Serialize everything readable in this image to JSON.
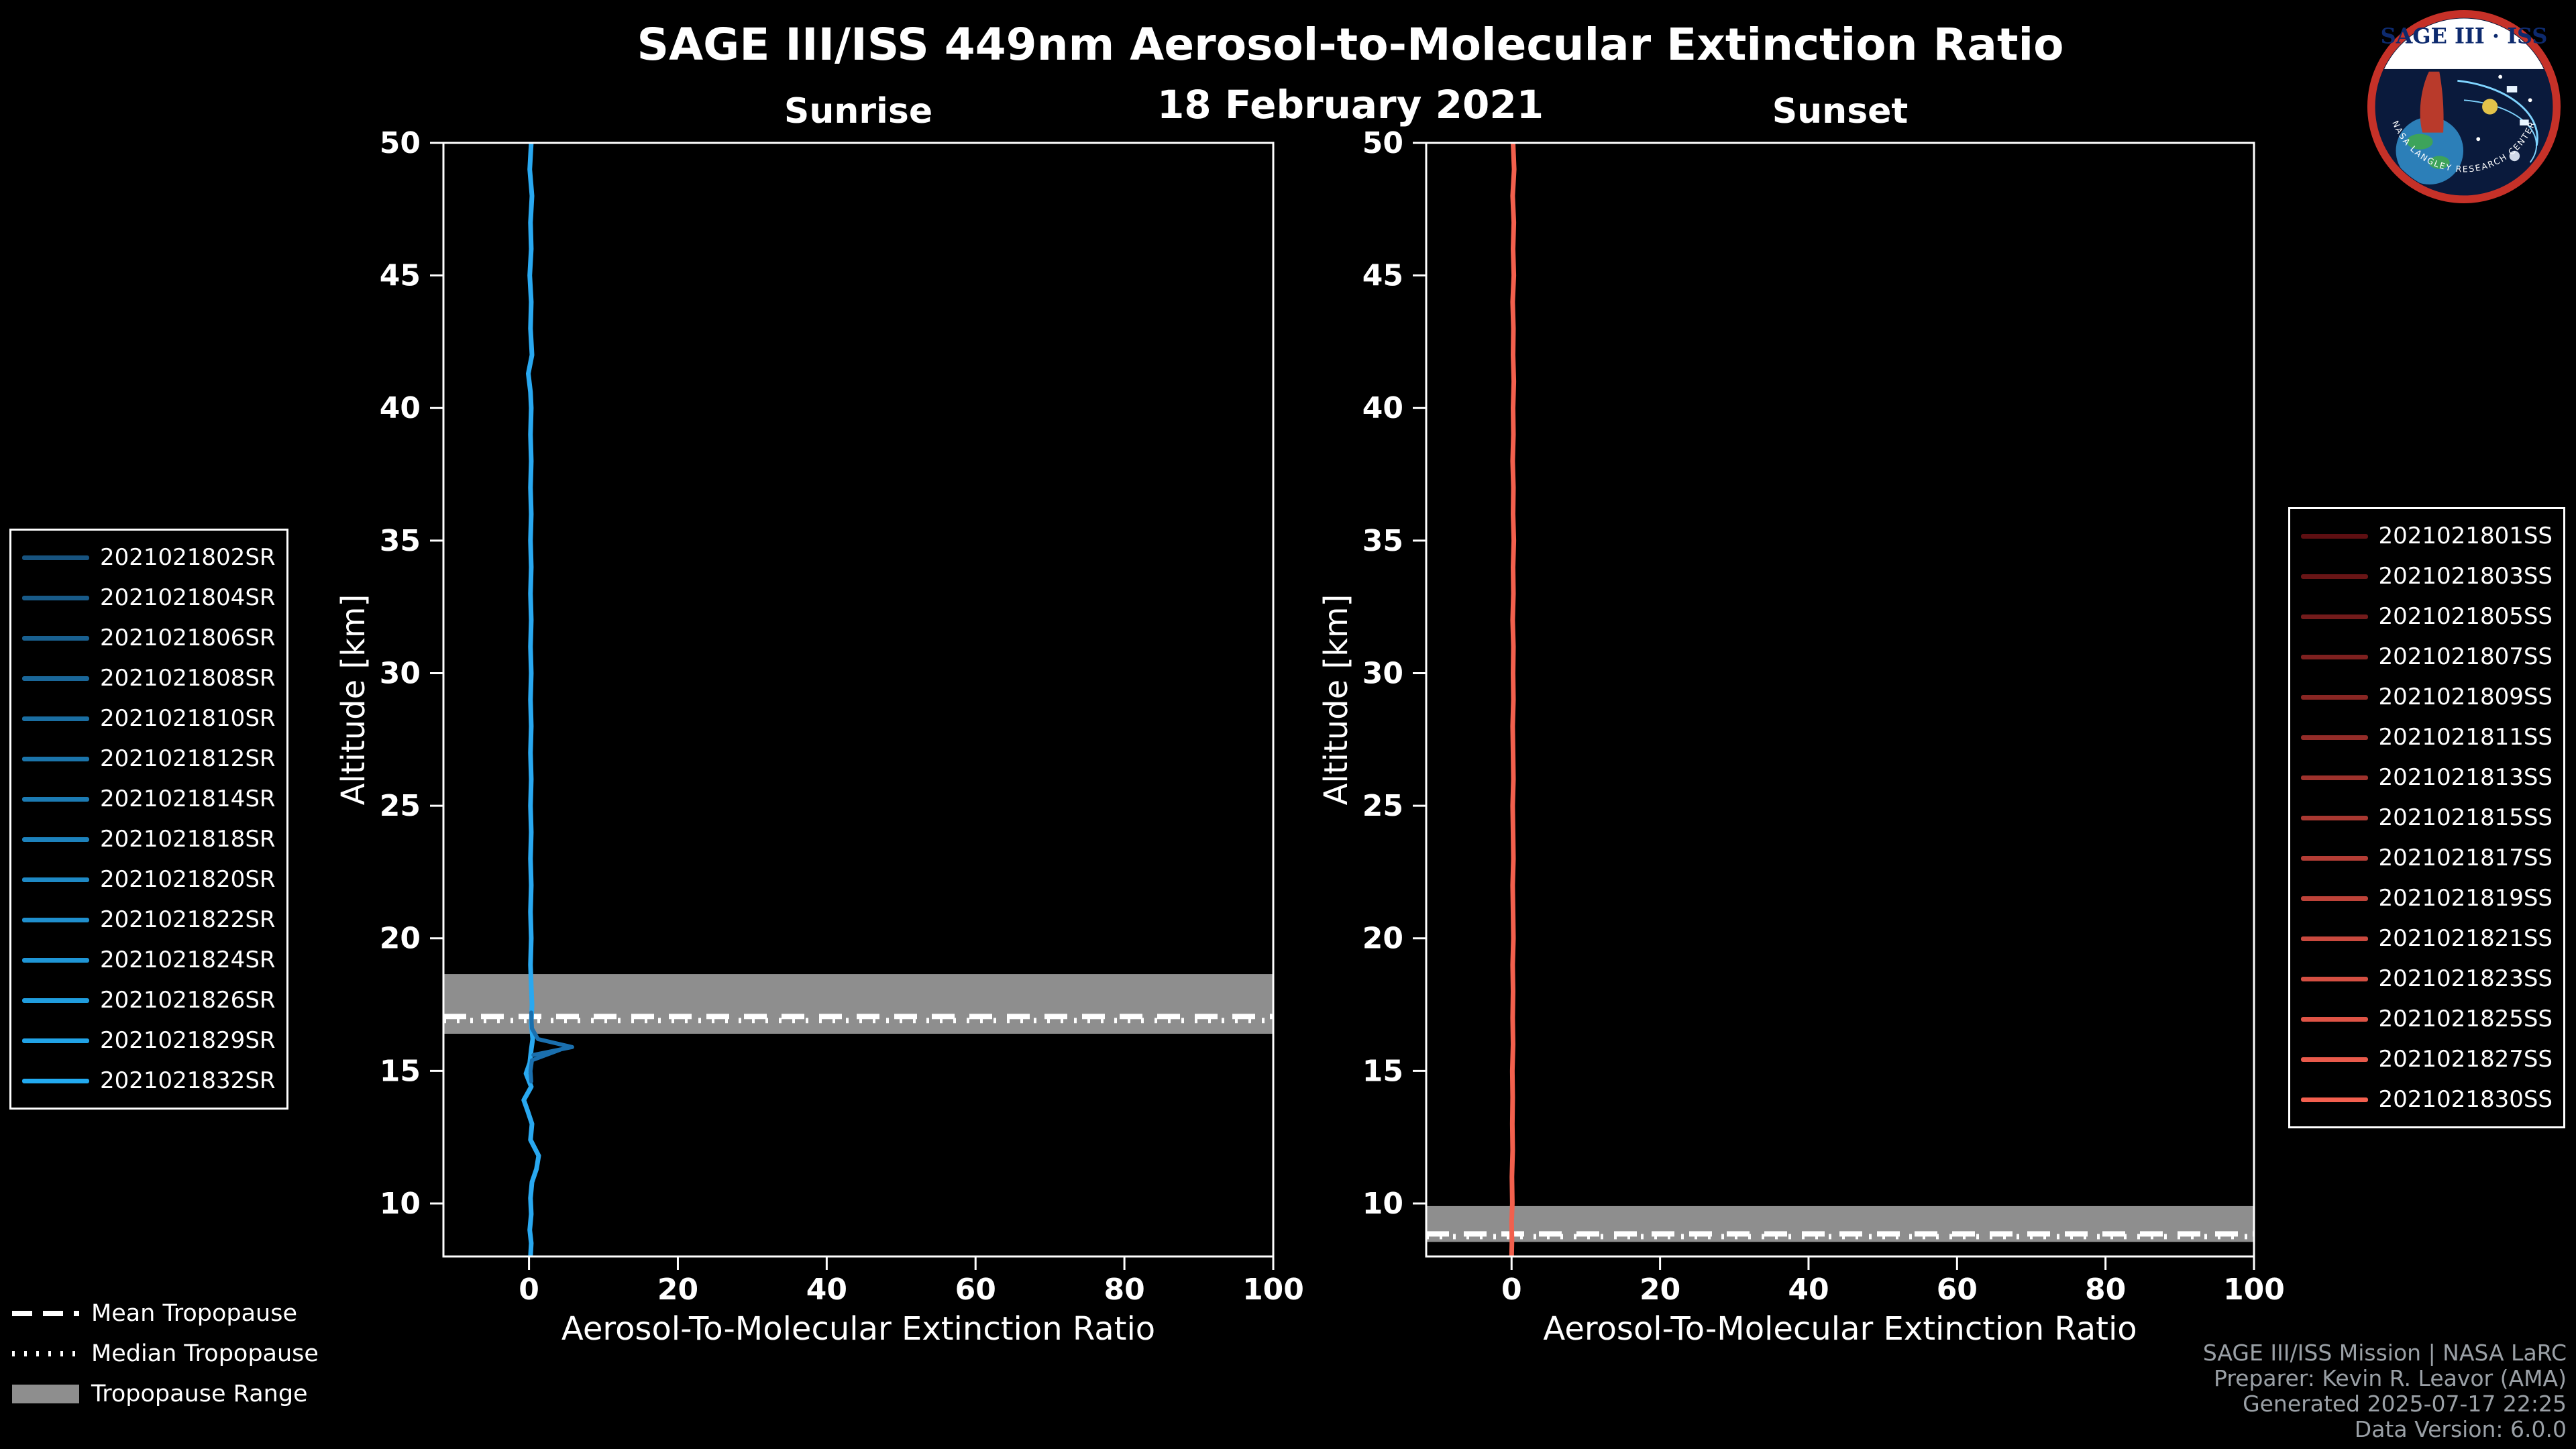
{
  "header": {
    "title": "SAGE III/ISS 449nm Aerosol-to-Molecular Extinction Ratio",
    "date": "18 February 2021"
  },
  "logo": {
    "text": "SAGE III · ISS",
    "ring_text": "NASA LANGLEY RESEARCH CENTER"
  },
  "colors": {
    "background": "#000000",
    "foreground": "#ffffff",
    "band": "#8e8e8e",
    "footer_text": "#9aa0a6"
  },
  "chart_data": [
    {
      "type": "line",
      "title": "Sunrise",
      "xlabel": "Aerosol-To-Molecular Extinction Ratio",
      "ylabel": "Altitude [km]",
      "xlim": [
        -11.5,
        100
      ],
      "ylim": [
        8,
        50
      ],
      "xticks": [
        0,
        20,
        40,
        60,
        80,
        100
      ],
      "yticks": [
        10,
        15,
        20,
        25,
        30,
        35,
        40,
        45,
        50
      ],
      "grid": false,
      "tropopause": {
        "mean_km": 17.05,
        "median_km": 16.9,
        "range_km": [
          16.4,
          18.65
        ]
      },
      "legend": {
        "position": "outside-left",
        "entries": [
          {
            "label": "2021021802SR",
            "color": "#17537F"
          },
          {
            "label": "2021021804SR",
            "color": "#185A88"
          },
          {
            "label": "2021021806SR",
            "color": "#196090"
          },
          {
            "label": "2021021808SR",
            "color": "#1A6799"
          },
          {
            "label": "2021021810SR",
            "color": "#1A6EA2"
          },
          {
            "label": "2021021812SR",
            "color": "#1B74AA"
          },
          {
            "label": "2021021814SR",
            "color": "#1C7BB3"
          },
          {
            "label": "2021021818SR",
            "color": "#1D82BC"
          },
          {
            "label": "2021021820SR",
            "color": "#1E89C5"
          },
          {
            "label": "2021021822SR",
            "color": "#1F8FCD"
          },
          {
            "label": "2021021824SR",
            "color": "#1F96D6"
          },
          {
            "label": "2021021826SR",
            "color": "#209DDE"
          },
          {
            "label": "2021021829SR",
            "color": "#21A3E7"
          },
          {
            "label": "2021021832SR",
            "color": "#22AAF0"
          }
        ]
      },
      "profiles": [
        {
          "name": "overlapped-sunrise-events",
          "color": "#29A8F0",
          "width": 7,
          "points": [
            [
              0.3,
              50
            ],
            [
              0.1,
              49
            ],
            [
              0.4,
              48
            ],
            [
              0.2,
              47
            ],
            [
              0.3,
              46
            ],
            [
              0.1,
              45
            ],
            [
              0.3,
              44
            ],
            [
              0.2,
              43
            ],
            [
              0.4,
              42
            ],
            [
              -0.1,
              41.3
            ],
            [
              0.2,
              40.6
            ],
            [
              0.3,
              40
            ],
            [
              0.2,
              39
            ],
            [
              0.3,
              38
            ],
            [
              0.2,
              37
            ],
            [
              0.3,
              36
            ],
            [
              0.2,
              35
            ],
            [
              0.3,
              34
            ],
            [
              0.2,
              33
            ],
            [
              0.3,
              32
            ],
            [
              0.2,
              31
            ],
            [
              0.3,
              30
            ],
            [
              0.2,
              29
            ],
            [
              0.3,
              28
            ],
            [
              0.2,
              27
            ],
            [
              0.3,
              26
            ],
            [
              0.2,
              25
            ],
            [
              0.3,
              24
            ],
            [
              0.2,
              23
            ],
            [
              0.3,
              22
            ],
            [
              0.2,
              21
            ],
            [
              0.3,
              20
            ],
            [
              0.2,
              19
            ],
            [
              0.3,
              18.2
            ],
            [
              0.4,
              17.5
            ],
            [
              0.3,
              16.8
            ],
            [
              0.5,
              16.2
            ],
            [
              0.3,
              15.8
            ],
            [
              0.1,
              15.3
            ],
            [
              -0.4,
              14.9
            ],
            [
              0.3,
              14.4
            ],
            [
              -0.7,
              13.9
            ],
            [
              -0.2,
              13.5
            ],
            [
              0.4,
              13.0
            ],
            [
              0.2,
              12.4
            ],
            [
              1.3,
              11.8
            ],
            [
              1.0,
              11.3
            ],
            [
              0.4,
              10.8
            ],
            [
              0.2,
              10.2
            ],
            [
              0.3,
              9.6
            ],
            [
              0.1,
              9.0
            ],
            [
              0.3,
              8.5
            ],
            [
              0.2,
              8.0
            ]
          ]
        },
        {
          "name": "sunrise-event-enhancement",
          "color": "#1A6FAE",
          "width": 6,
          "points": [
            [
              0.3,
              17.2
            ],
            [
              0.4,
              16.6
            ],
            [
              1.2,
              16.2
            ],
            [
              5.8,
              15.9
            ],
            [
              0.6,
              15.6
            ],
            [
              4.2,
              15.8
            ],
            [
              0.4,
              15.4
            ],
            [
              0.2,
              15.0
            ],
            [
              0.3,
              14.6
            ]
          ]
        }
      ]
    },
    {
      "type": "line",
      "title": "Sunset",
      "xlabel": "Aerosol-To-Molecular Extinction Ratio",
      "ylabel": "Altitude [km]",
      "xlim": [
        -11.5,
        100
      ],
      "ylim": [
        8,
        50
      ],
      "xticks": [
        0,
        20,
        40,
        60,
        80,
        100
      ],
      "yticks": [
        10,
        15,
        20,
        25,
        30,
        35,
        40,
        45,
        50
      ],
      "grid": false,
      "tropopause": {
        "mean_km": 8.85,
        "median_km": 8.75,
        "range_km": [
          8.55,
          9.9
        ]
      },
      "legend": {
        "position": "outside-right",
        "entries": [
          {
            "label": "2021021801SS",
            "color": "#5E0F12"
          },
          {
            "label": "2021021803SS",
            "color": "#691516"
          },
          {
            "label": "2021021805SS",
            "color": "#731B1B"
          },
          {
            "label": "2021021807SS",
            "color": "#7E201F"
          },
          {
            "label": "2021021809SS",
            "color": "#892623"
          },
          {
            "label": "2021021811SS",
            "color": "#942C28"
          },
          {
            "label": "2021021813SS",
            "color": "#9E322C"
          },
          {
            "label": "2021021815SS",
            "color": "#A93831"
          },
          {
            "label": "2021021817SS",
            "color": "#B43D35"
          },
          {
            "label": "2021021819SS",
            "color": "#BE4339"
          },
          {
            "label": "2021021821SS",
            "color": "#C9493E"
          },
          {
            "label": "2021021823SS",
            "color": "#D44F42"
          },
          {
            "label": "2021021825SS",
            "color": "#DF5446"
          },
          {
            "label": "2021021827SS",
            "color": "#E95A4B"
          },
          {
            "label": "2021021830SS",
            "color": "#F4604F"
          }
        ]
      },
      "profiles": [
        {
          "name": "overlapped-sunset-events",
          "color": "#F2604D",
          "width": 7,
          "points": [
            [
              0.2,
              50
            ],
            [
              0.35,
              49
            ],
            [
              0.15,
              48
            ],
            [
              0.3,
              47
            ],
            [
              0.2,
              46
            ],
            [
              0.3,
              45
            ],
            [
              0.15,
              44
            ],
            [
              0.25,
              43
            ],
            [
              0.2,
              42
            ],
            [
              0.3,
              41
            ],
            [
              0.2,
              40
            ],
            [
              0.25,
              39
            ],
            [
              0.15,
              38
            ],
            [
              0.25,
              37
            ],
            [
              0.2,
              36
            ],
            [
              0.3,
              35
            ],
            [
              0.2,
              34
            ],
            [
              0.25,
              33
            ],
            [
              0.15,
              32
            ],
            [
              0.25,
              31
            ],
            [
              0.2,
              30
            ],
            [
              0.25,
              29
            ],
            [
              0.15,
              28
            ],
            [
              0.2,
              27
            ],
            [
              0.25,
              26
            ],
            [
              0.15,
              25
            ],
            [
              0.2,
              24
            ],
            [
              0.25,
              23
            ],
            [
              0.15,
              22
            ],
            [
              0.2,
              21
            ],
            [
              0.25,
              20
            ],
            [
              0.15,
              19
            ],
            [
              0.2,
              18
            ],
            [
              0.15,
              17
            ],
            [
              0.2,
              16
            ],
            [
              0.1,
              15
            ],
            [
              0.15,
              14
            ],
            [
              0.1,
              13
            ],
            [
              0.15,
              12
            ],
            [
              0.05,
              11
            ],
            [
              0.1,
              10
            ],
            [
              0.0,
              9.3
            ],
            [
              0.05,
              8.6
            ],
            [
              0.0,
              8.0
            ]
          ]
        }
      ]
    }
  ],
  "tropopause_legend": {
    "items": [
      {
        "label": "Mean Tropopause",
        "style": "dashed"
      },
      {
        "label": "Median Tropopause",
        "style": "dotted"
      },
      {
        "label": "Tropopause Range",
        "style": "band"
      }
    ]
  },
  "footer": {
    "lines": [
      "SAGE III/ISS Mission | NASA LaRC",
      "Preparer: Kevin R. Leavor (AMA)",
      "Generated 2025-07-17 22:25",
      "Data Version: 6.0.0"
    ]
  }
}
